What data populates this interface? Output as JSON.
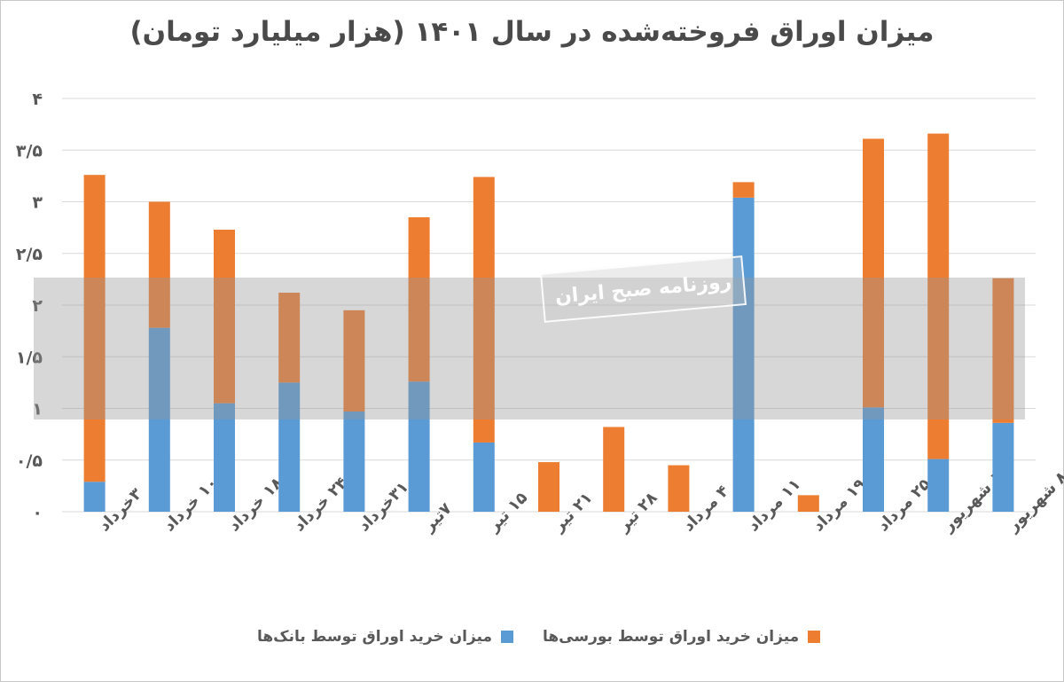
{
  "title": "میزان اوراق فروخته‌شده  در سال ۱۴۰۱ (هزار میلیارد تومان)",
  "watermark": {
    "text": "روزنامه صبح ایران"
  },
  "chart_data": {
    "type": "bar",
    "stacked": true,
    "categories": [
      "۳خرداد",
      "۱۰ خرداد",
      "۱۸ خرداد",
      "۲۴ خرداد",
      "۳۱خرداد",
      "۷تیر",
      "۱۵ تیر",
      "۲۱ تیر",
      "۲۸ تیر",
      "۴ مرداد",
      "۱۱ مرداد",
      "۱۹ مرداد",
      "۲۵ مرداد",
      "۱ شهریور",
      "۸ شهریور"
    ],
    "series": [
      {
        "name": "میزان خرید اوراق توسط بانک‌ها",
        "color": "#5b9bd5",
        "values": [
          0.29,
          1.78,
          1.05,
          1.25,
          0.97,
          1.26,
          0.67,
          0,
          0,
          0,
          3.04,
          0,
          1.01,
          0.51,
          0.86
        ]
      },
      {
        "name": "میزان خرید اوراق توسط بورسی‌ها",
        "color": "#ed7d31",
        "values": [
          2.97,
          1.22,
          1.68,
          0.87,
          0.98,
          1.59,
          2.57,
          0.48,
          0.82,
          0.45,
          0.15,
          0.16,
          2.6,
          3.15,
          1.4
        ]
      }
    ],
    "ylim": [
      0,
      4
    ],
    "yticks": [
      "۰",
      "۰/۵",
      "۱",
      "۱/۵",
      "۲",
      "۲/۵",
      "۳",
      "۳/۵",
      "۴"
    ],
    "grid": true,
    "legend_position": "bottom"
  }
}
